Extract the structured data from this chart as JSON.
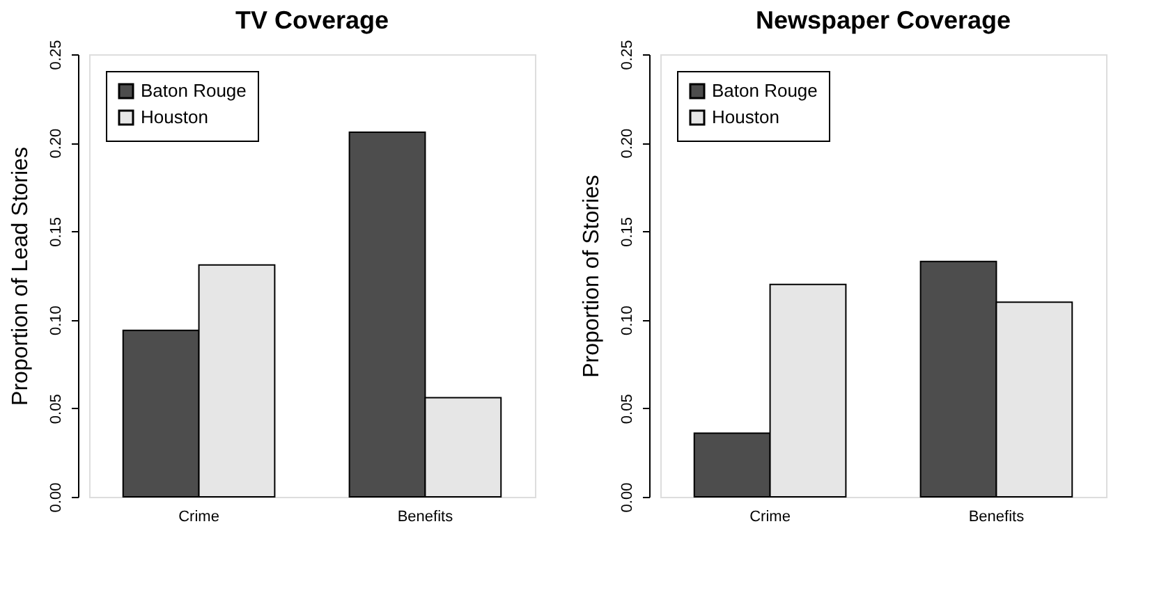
{
  "chart_data": [
    {
      "type": "bar",
      "title": "TV Coverage",
      "ylabel": "Proportion of Lead Stories",
      "categories": [
        "Crime",
        "Benefits"
      ],
      "ylim": [
        0,
        0.25
      ],
      "yticks": [
        {
          "value": 0,
          "label": "0.00"
        },
        0.05,
        {
          "value": 0.1,
          "label": "0.10"
        },
        0.15,
        {
          "value": 0.2,
          "label": "0.20"
        },
        0.25
      ],
      "grid": false,
      "legend": "top left",
      "series": [
        {
          "name": "Baton Rouge",
          "color": "#4d4d4d",
          "values": [
            0.094,
            0.206
          ]
        },
        {
          "name": "Houston",
          "color": "#e6e6e6",
          "values": [
            0.131,
            0.056
          ]
        }
      ]
    },
    {
      "type": "bar",
      "title": "Newspaper Coverage",
      "ylabel": "Proportion of Stories",
      "categories": [
        "Crime",
        "Benefits"
      ],
      "ylim": [
        0,
        0.25
      ],
      "yticks": [
        {
          "value": 0,
          "label": "0.00"
        },
        0.05,
        {
          "value": 0.1,
          "label": "0.10"
        },
        0.15,
        {
          "value": 0.2,
          "label": "0.20"
        },
        0.25
      ],
      "grid": false,
      "legend": "top left",
      "series": [
        {
          "name": "Baton Rouge",
          "color": "#4d4d4d",
          "values": [
            0.036,
            0.133
          ]
        },
        {
          "name": "Houston",
          "color": "#e6e6e6",
          "values": [
            0.12,
            0.11
          ]
        }
      ]
    }
  ]
}
